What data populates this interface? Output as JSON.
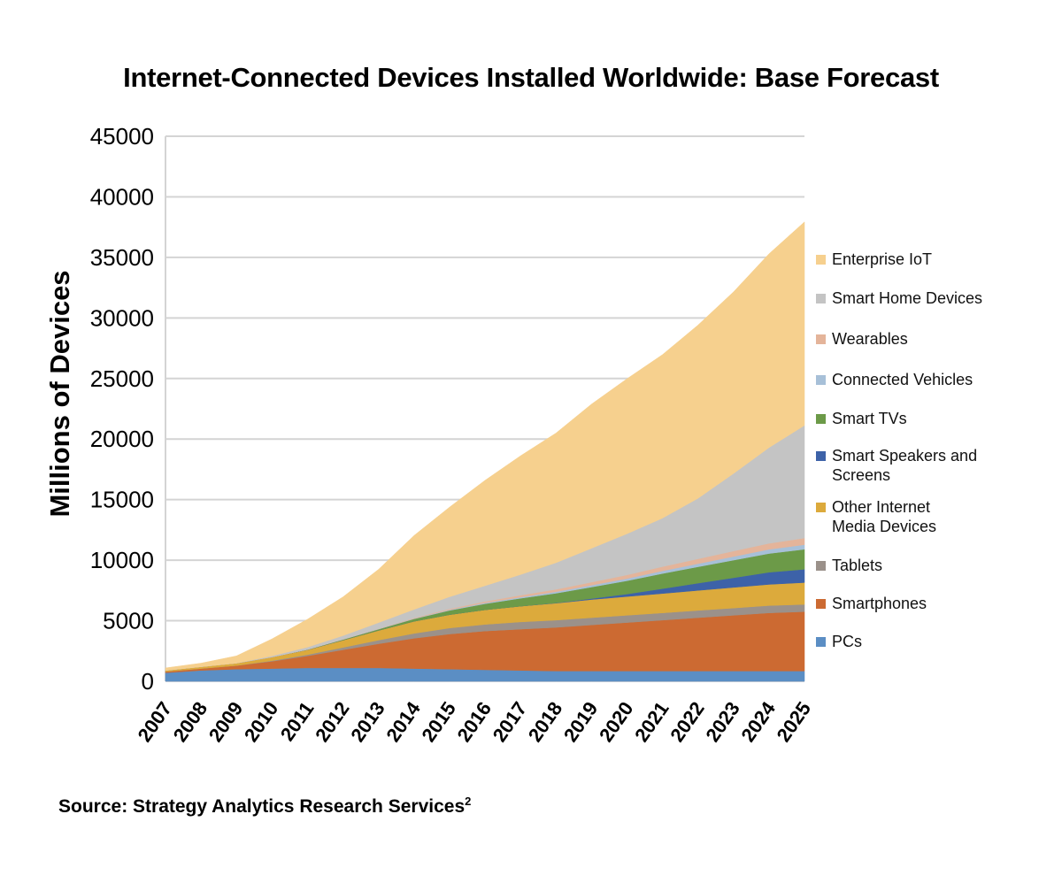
{
  "title": "Internet-Connected Devices Installed Worldwide: Base Forecast",
  "source": "Source: Strategy Analytics Research Services",
  "source_sup": "2",
  "chart_data": {
    "type": "area",
    "stacked": true,
    "title": "Internet-Connected Devices Installed Worldwide: Base Forecast",
    "xlabel": "",
    "ylabel": "Millions of Devices",
    "ylim": [
      0,
      45000
    ],
    "yticks": [
      0,
      5000,
      10000,
      15000,
      20000,
      25000,
      30000,
      35000,
      40000,
      45000
    ],
    "grid": true,
    "legend_position": "right",
    "x": [
      "2007",
      "2008",
      "2009",
      "2010",
      "2011",
      "2012",
      "2013",
      "2014",
      "2015",
      "2016",
      "2017",
      "2018",
      "2019",
      "2020",
      "2021",
      "2022",
      "2023",
      "2024",
      "2025"
    ],
    "series": [
      {
        "name": "PCs",
        "color": "#5b8ec4",
        "values": [
          700,
          900,
          1000,
          1050,
          1100,
          1100,
          1100,
          1050,
          1000,
          950,
          900,
          850,
          850,
          850,
          850,
          850,
          850,
          850,
          850
        ]
      },
      {
        "name": "Smartphones",
        "color": "#cc6a32",
        "values": [
          100,
          150,
          300,
          600,
          1000,
          1500,
          2000,
          2500,
          2900,
          3200,
          3400,
          3600,
          3800,
          4000,
          4200,
          4400,
          4600,
          4800,
          4900
        ]
      },
      {
        "name": "Tablets",
        "color": "#9b918a",
        "values": [
          0,
          0,
          0,
          50,
          100,
          200,
          300,
          400,
          500,
          550,
          600,
          600,
          600,
          600,
          600,
          600,
          600,
          600,
          600
        ]
      },
      {
        "name": "Other Internet Media Devices",
        "color": "#dcaa3c",
        "values": [
          100,
          150,
          200,
          300,
          400,
          600,
          800,
          1000,
          1100,
          1200,
          1300,
          1400,
          1500,
          1550,
          1600,
          1650,
          1700,
          1750,
          1800
        ]
      },
      {
        "name": "Smart Speakers and Screens",
        "color": "#3d62a8",
        "values": [
          0,
          0,
          0,
          0,
          0,
          0,
          0,
          0,
          0,
          0,
          0,
          20,
          80,
          200,
          400,
          600,
          800,
          1000,
          1100
        ]
      },
      {
        "name": "Smart TVs",
        "color": "#6c9a48",
        "values": [
          0,
          0,
          0,
          0,
          20,
          50,
          100,
          200,
          350,
          500,
          650,
          800,
          950,
          1100,
          1250,
          1350,
          1450,
          1550,
          1650
        ]
      },
      {
        "name": "Connected Vehicles",
        "color": "#a7c0d8",
        "values": [
          0,
          0,
          0,
          0,
          0,
          10,
          20,
          30,
          50,
          70,
          100,
          120,
          150,
          180,
          220,
          260,
          300,
          340,
          380
        ]
      },
      {
        "name": "Wearables",
        "color": "#e4b49a",
        "values": [
          0,
          0,
          0,
          0,
          0,
          10,
          20,
          50,
          80,
          120,
          160,
          200,
          250,
          300,
          350,
          400,
          450,
          500,
          550
        ]
      },
      {
        "name": "Smart Home Devices",
        "color": "#c4c4c4",
        "values": [
          0,
          0,
          0,
          100,
          200,
          300,
          500,
          700,
          1000,
          1300,
          1700,
          2200,
          2800,
          3400,
          4000,
          5000,
          6400,
          7900,
          9300
        ]
      },
      {
        "name": "Enterprise IoT",
        "color": "#f6d08e",
        "values": [
          200,
          300,
          600,
          1400,
          2300,
          3200,
          4400,
          6100,
          7400,
          8700,
          9800,
          10700,
          11900,
          12800,
          13500,
          14300,
          15000,
          16000,
          16800
        ]
      }
    ]
  },
  "legend_order": [
    9,
    8,
    7,
    6,
    5,
    4,
    3,
    2,
    1,
    0
  ],
  "legend_lines": {
    "Smart Speakers and Screens": [
      "Smart Speakers and",
      "Screens"
    ],
    "Other Internet Media Devices": [
      "Other Internet",
      "Media Devices"
    ]
  }
}
